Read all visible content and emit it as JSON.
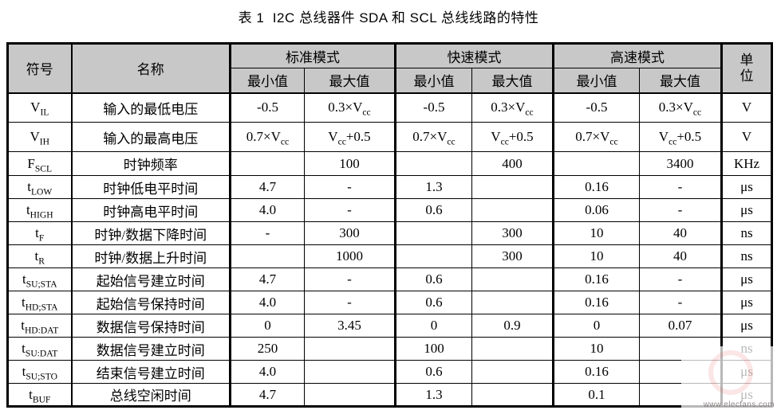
{
  "title": "表 1  I2C 总线器件 SDA 和 SCL 总线线路的特性",
  "table": {
    "header": {
      "symbol": "符号",
      "name": "名称",
      "groups": [
        {
          "label": "标准模式"
        },
        {
          "label": "快速模式"
        },
        {
          "label": "高速模式"
        }
      ],
      "min_label": "最小值",
      "max_label": "最大值",
      "unit_lines": [
        "单",
        "位"
      ]
    },
    "rows": [
      {
        "symbol": "V~IL~",
        "name": "输入的最低电压",
        "std_min": "-0.5",
        "std_max": "0.3×V~cc~",
        "fast_min": "-0.5",
        "fast_max": "0.3×V~cc~",
        "hs_min": "-0.5",
        "hs_max": "0.3×V~cc~",
        "unit": "V"
      },
      {
        "symbol": "V~IH~",
        "name": "输入的最高电压",
        "std_min": "0.7×V~cc~",
        "std_max": "V~cc~+0.5",
        "fast_min": "0.7×V~cc~",
        "fast_max": "V~cc~+0.5",
        "hs_min": "0.7×V~cc~",
        "hs_max": "V~cc~+0.5",
        "unit": "V"
      },
      {
        "symbol": "F~SCL~",
        "name": "时钟频率",
        "std_min": "",
        "std_max": "100",
        "fast_min": "",
        "fast_max": "400",
        "hs_min": "",
        "hs_max": "3400",
        "unit": "KHz"
      },
      {
        "symbol": "t~LOW~",
        "name": "时钟低电平时间",
        "std_min": "4.7",
        "std_max": "-",
        "fast_min": "1.3",
        "fast_max": "",
        "hs_min": "0.16",
        "hs_max": "-",
        "unit": "μs"
      },
      {
        "symbol": "t~HIGH~",
        "name": "时钟高电平时间",
        "std_min": "4.0",
        "std_max": "-",
        "fast_min": "0.6",
        "fast_max": "",
        "hs_min": "0.06",
        "hs_max": "-",
        "unit": "μs"
      },
      {
        "symbol": "t~F~",
        "name": "时钟/数据下降时间",
        "std_min": "-",
        "std_max": "300",
        "fast_min": "",
        "fast_max": "300",
        "hs_min": "10",
        "hs_max": "40",
        "unit": "ns"
      },
      {
        "symbol": "t~R~",
        "name": "时钟/数据上升时间",
        "std_min": "",
        "std_max": "1000",
        "fast_min": "",
        "fast_max": "300",
        "hs_min": "10",
        "hs_max": "40",
        "unit": "ns"
      },
      {
        "symbol": "t~SU;STA~",
        "name": "起始信号建立时间",
        "std_min": "4.7",
        "std_max": "-",
        "fast_min": "0.6",
        "fast_max": "",
        "hs_min": "0.16",
        "hs_max": "-",
        "unit": "μs"
      },
      {
        "symbol": "t~HD;STA~",
        "name": "起始信号保持时间",
        "std_min": "4.0",
        "std_max": "-",
        "fast_min": "0.6",
        "fast_max": "",
        "hs_min": "0.16",
        "hs_max": "-",
        "unit": "μs"
      },
      {
        "symbol": "t~HD:DAT~",
        "name": "数据信号保持时间",
        "std_min": "0",
        "std_max": "3.45",
        "fast_min": "0",
        "fast_max": "0.9",
        "hs_min": "0",
        "hs_max": "0.07",
        "unit": "μs"
      },
      {
        "symbol": "t~SU:DAT~",
        "name": "数据信号建立时间",
        "std_min": "250",
        "std_max": "",
        "fast_min": "100",
        "fast_max": "",
        "hs_min": "10",
        "hs_max": "",
        "unit": "ns"
      },
      {
        "symbol": "t~SU;STO~",
        "name": "结束信号建立时间",
        "std_min": "4.0",
        "std_max": "",
        "fast_min": "0.6",
        "fast_max": "",
        "hs_min": "0.16",
        "hs_max": "",
        "unit": "μs"
      },
      {
        "symbol": "t~BUF~",
        "name": "总线空闲时间",
        "std_min": "4.7",
        "std_max": "",
        "fast_min": "1.3",
        "fast_max": "",
        "hs_min": "0.1",
        "hs_max": "",
        "unit": "μs"
      }
    ]
  },
  "watermark": {
    "text": "www.elecfans.com"
  }
}
